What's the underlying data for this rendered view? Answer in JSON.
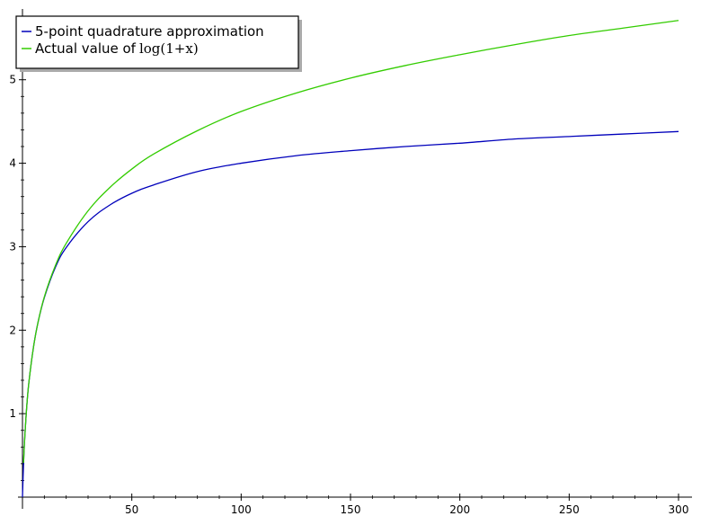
{
  "chart_data": {
    "type": "line",
    "title": "",
    "xlabel": "",
    "ylabel": "",
    "xlim": [
      0,
      300
    ],
    "ylim": [
      0,
      5.6
    ],
    "grid": false,
    "legend_position": "top-left",
    "x_ticks": [
      50,
      100,
      150,
      200,
      250,
      300
    ],
    "y_ticks": [
      1,
      2,
      3,
      4,
      5
    ],
    "series": [
      {
        "name": "5-point quadrature approximation",
        "color": "#0000bb",
        "x": [
          0,
          0.5,
          1,
          2,
          3,
          5,
          7,
          10,
          15,
          20,
          30,
          40,
          50,
          60,
          80,
          100,
          125,
          150,
          175,
          200,
          225,
          250,
          275,
          300
        ],
        "y": [
          0,
          0.41,
          0.69,
          1.1,
          1.39,
          1.79,
          2.08,
          2.39,
          2.75,
          2.99,
          3.3,
          3.5,
          3.64,
          3.74,
          3.9,
          4.0,
          4.09,
          4.15,
          4.2,
          4.24,
          4.29,
          4.32,
          4.35,
          4.38
        ]
      },
      {
        "name": "Actual value of",
        "name_math": "log(1+x)",
        "color": "#33cc00",
        "x": [
          0.5,
          1,
          2,
          3,
          5,
          7,
          10,
          15,
          20,
          30,
          40,
          50,
          60,
          80,
          100,
          125,
          150,
          175,
          200,
          225,
          250,
          275,
          300
        ],
        "y": [
          0.41,
          0.69,
          1.1,
          1.39,
          1.79,
          2.08,
          2.4,
          2.77,
          3.04,
          3.43,
          3.71,
          3.93,
          4.11,
          4.39,
          4.62,
          4.84,
          5.02,
          5.17,
          5.3,
          5.42,
          5.53,
          5.62,
          5.71
        ]
      }
    ]
  }
}
